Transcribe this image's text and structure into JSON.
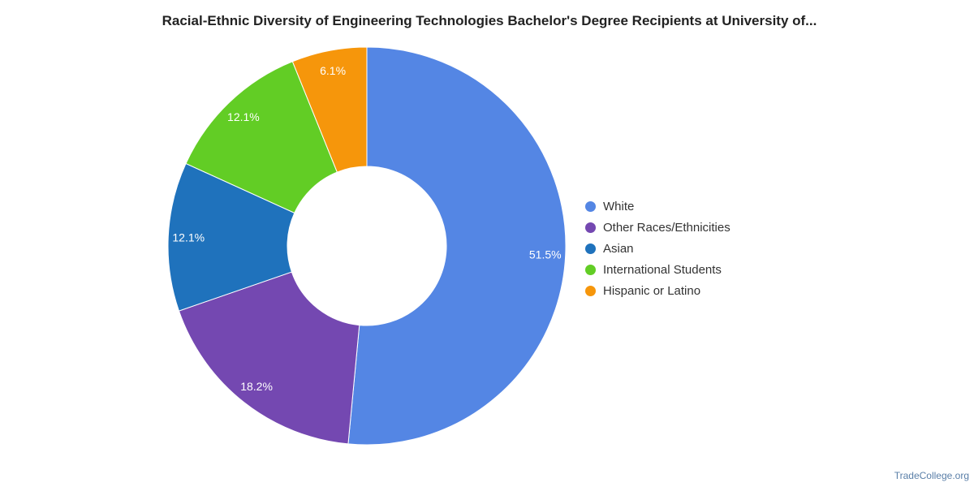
{
  "title": "Racial-Ethnic Diversity of Engineering Technologies Bachelor's Degree Recipients at University of...",
  "watermark": "TradeCollege.org",
  "chart_data": {
    "type": "pie",
    "donut": true,
    "title": "Racial-Ethnic Diversity of Engineering Technologies Bachelor's Degree Recipients at University of...",
    "legend_position": "right",
    "slices": [
      {
        "name": "White",
        "value": 51.5,
        "label": "51.5%",
        "color": "#5486e4"
      },
      {
        "name": "Other Races/Ethnicities",
        "value": 18.2,
        "label": "18.2%",
        "color": "#7448b1"
      },
      {
        "name": "Asian",
        "value": 12.1,
        "label": "12.1%",
        "color": "#1f72bc"
      },
      {
        "name": "International Students",
        "value": 12.1,
        "label": "12.1%",
        "color": "#62cd25"
      },
      {
        "name": "Hispanic or Latino",
        "value": 6.1,
        "label": "6.1%",
        "color": "#f6960b"
      }
    ]
  }
}
